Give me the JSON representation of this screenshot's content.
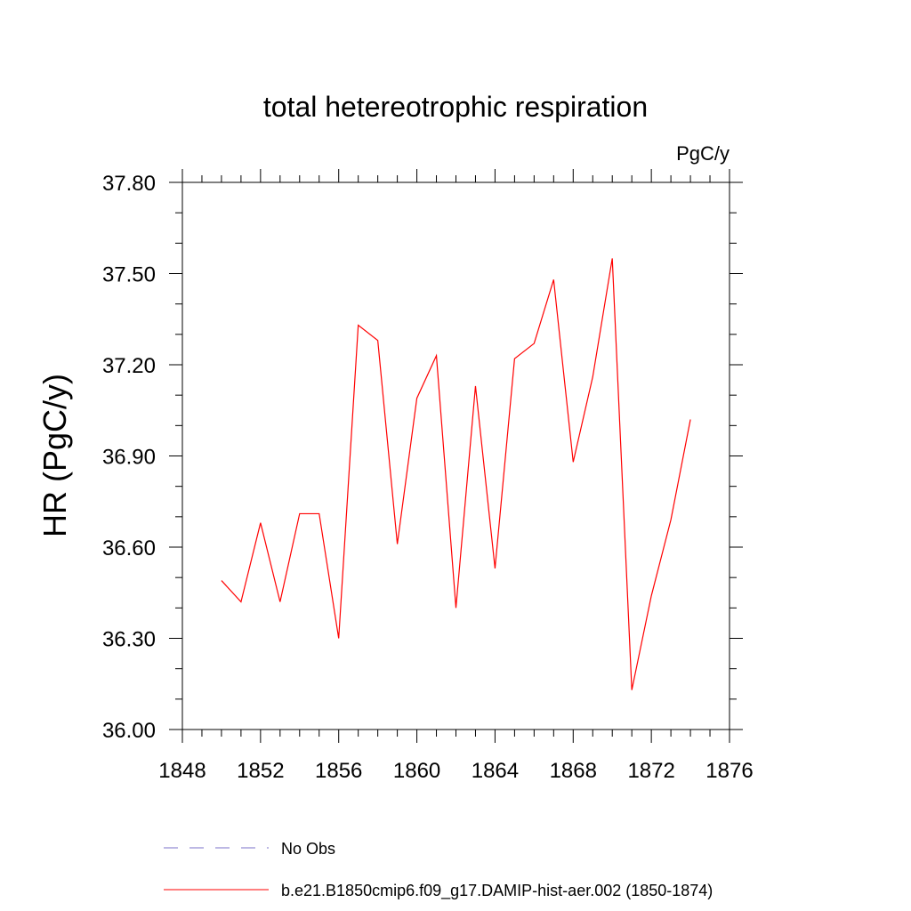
{
  "chart_data": {
    "type": "line",
    "title": "total hetereotrophic respiration",
    "units_label": "PgC/y",
    "ylabel": "HR  (PgC/y)",
    "xlabel": "",
    "xlim": [
      1848,
      1876
    ],
    "ylim": [
      36.0,
      37.8
    ],
    "xticks": [
      1848,
      1852,
      1856,
      1860,
      1864,
      1868,
      1872,
      1876
    ],
    "xtick_labels": [
      "1848",
      "1852",
      "1856",
      "1860",
      "1864",
      "1868",
      "1872",
      "1876"
    ],
    "yticks": [
      36.0,
      36.3,
      36.6,
      36.9,
      37.2,
      37.5,
      37.8
    ],
    "ytick_labels": [
      "36.00",
      "36.30",
      "36.60",
      "36.90",
      "37.20",
      "37.50",
      "37.80"
    ],
    "x_minor_step": 1,
    "y_minor_step": 0.1,
    "grid": false,
    "legend_position": "bottom",
    "series": [
      {
        "name": "No Obs",
        "color": "#7b72c9",
        "style": "dashed",
        "x": [],
        "y": []
      },
      {
        "name": "b.e21.B1850cmip6.f09_g17.DAMIP-hist-aer.002 (1850-1874)",
        "color": "#ff0000",
        "style": "solid",
        "x": [
          1850,
          1851,
          1852,
          1853,
          1854,
          1855,
          1856,
          1857,
          1858,
          1859,
          1860,
          1861,
          1862,
          1863,
          1864,
          1865,
          1866,
          1867,
          1868,
          1869,
          1870,
          1871,
          1872,
          1873,
          1874
        ],
        "y": [
          36.49,
          36.42,
          36.68,
          36.42,
          36.71,
          36.71,
          36.3,
          37.33,
          37.28,
          36.61,
          37.09,
          37.23,
          36.4,
          37.13,
          36.53,
          37.22,
          37.27,
          37.48,
          36.88,
          37.16,
          37.55,
          36.13,
          36.44,
          36.69,
          37.02
        ]
      }
    ]
  }
}
